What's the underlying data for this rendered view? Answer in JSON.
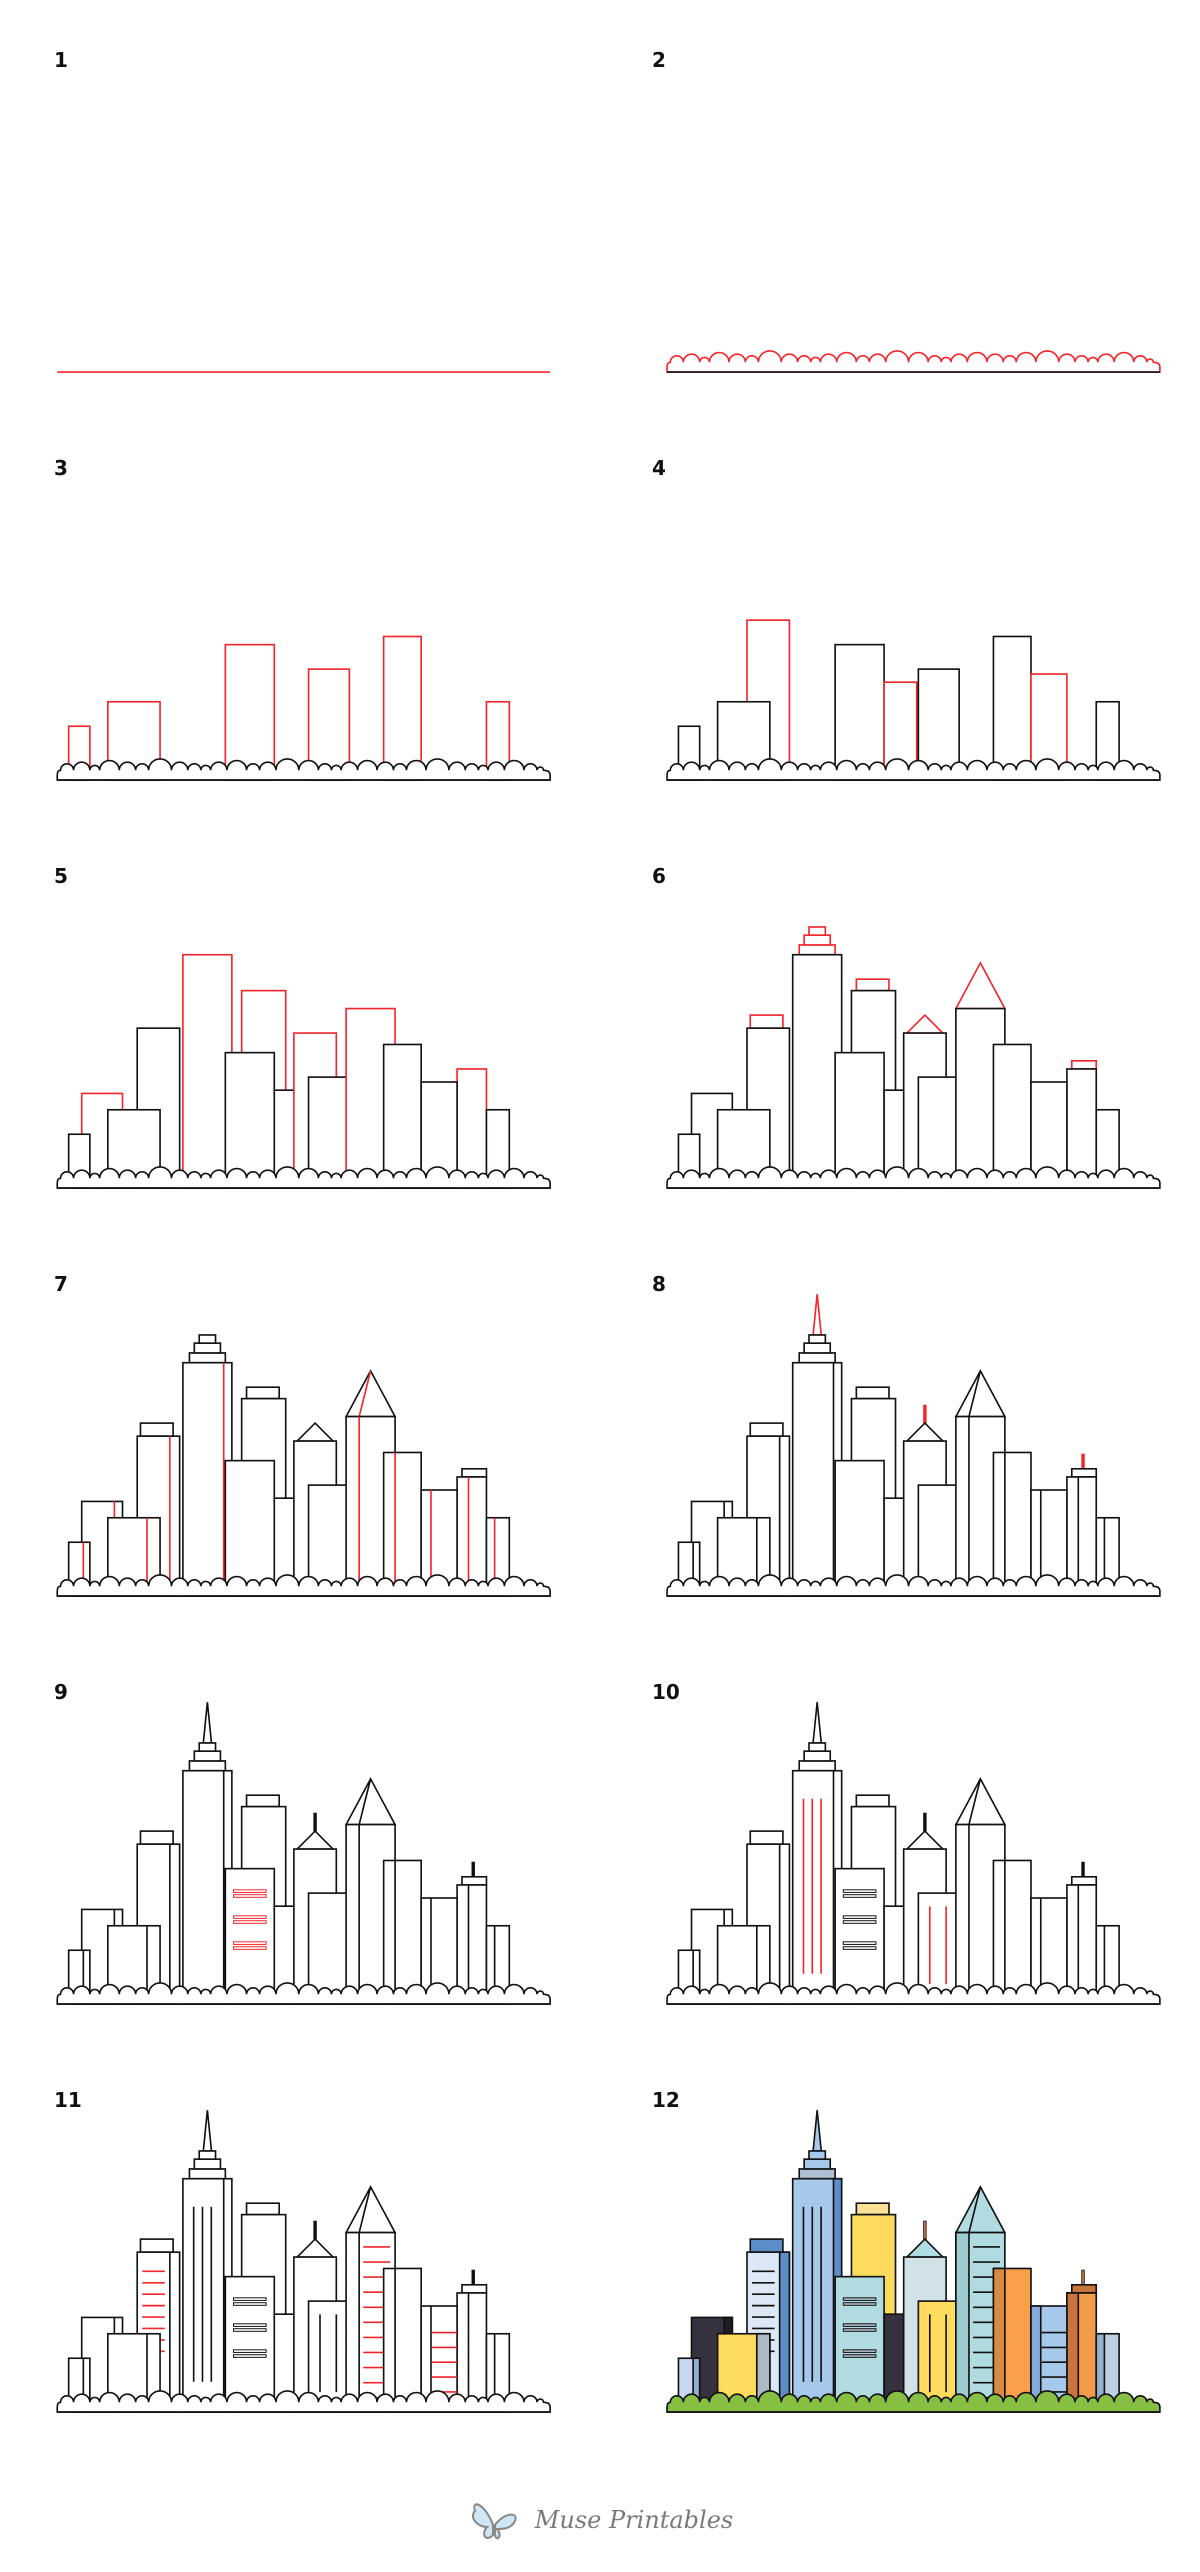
{
  "panels": [
    {
      "step": 1,
      "label": "1"
    },
    {
      "step": 2,
      "label": "2"
    },
    {
      "step": 3,
      "label": "3"
    },
    {
      "step": 4,
      "label": "4"
    },
    {
      "step": 5,
      "label": "5"
    },
    {
      "step": 6,
      "label": "6"
    },
    {
      "step": 7,
      "label": "7"
    },
    {
      "step": 8,
      "label": "8"
    },
    {
      "step": 9,
      "label": "9"
    },
    {
      "step": 10,
      "label": "10"
    },
    {
      "step": 11,
      "label": "11"
    },
    {
      "step": 12,
      "label": "12"
    }
  ],
  "colors": {
    "highlight": "#f2262b",
    "outline": "#111111",
    "bushes": "#86bf43",
    "dark": "#35313f",
    "yellow": "#fddb5c",
    "light_yellow": "#fbe095",
    "blue": "#a6c8ea",
    "deep_blue": "#5b8ec8",
    "pale_blue": "#dce8f5",
    "teal": "#b0dce1",
    "orange": "#f9a049",
    "dark_orange": "#c8743d",
    "grey_blue": "#aebac6"
  },
  "logo": {
    "text": "Muse Printables",
    "icon": "butterfly-icon"
  }
}
